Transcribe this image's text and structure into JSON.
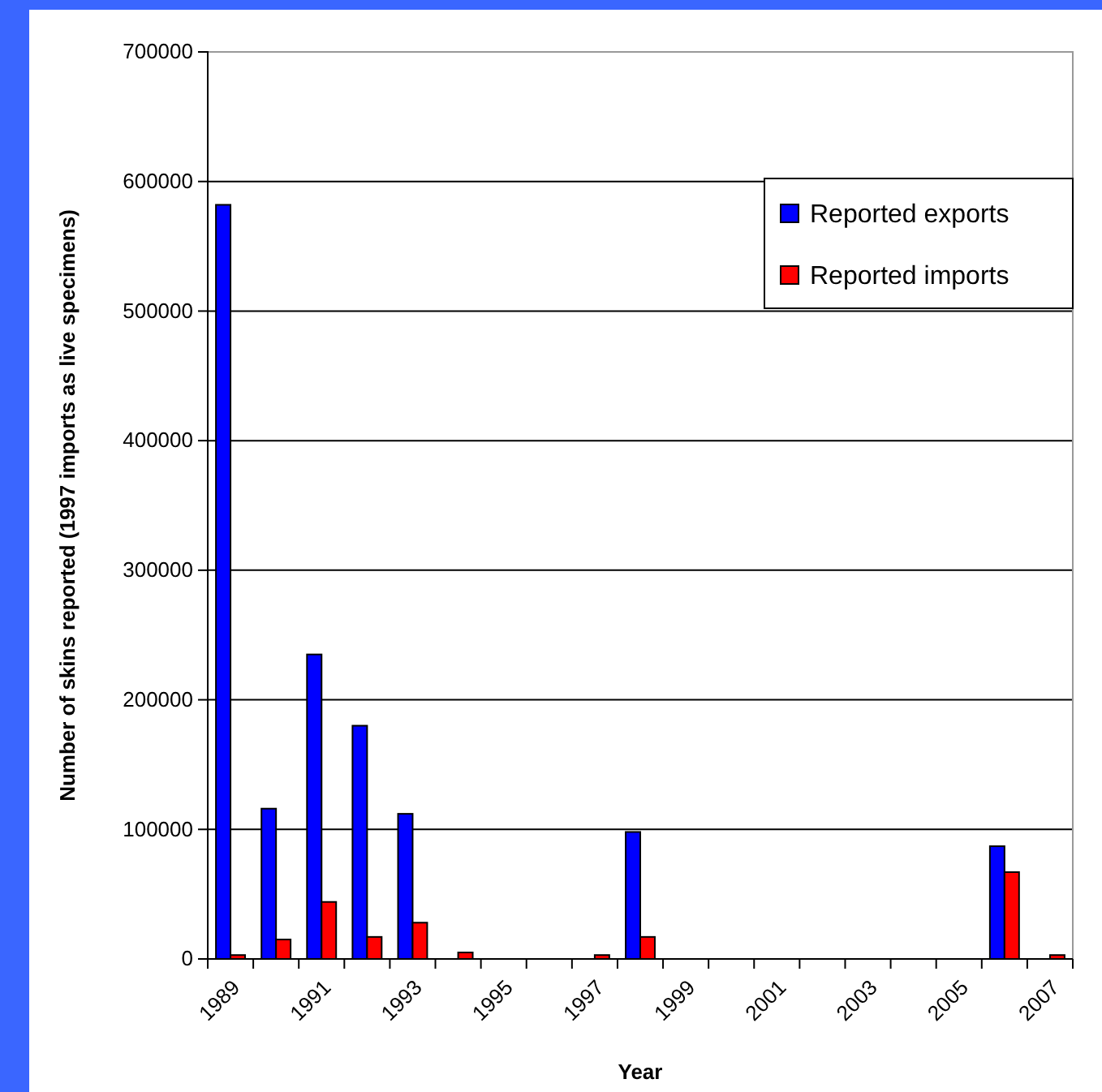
{
  "chart_data": {
    "type": "bar",
    "xlabel": "Year",
    "ylabel": "Number of skins reported (1997 imports as live specimens)",
    "categories": [
      "1989",
      null,
      "1991",
      null,
      "1993",
      null,
      "1995",
      null,
      "1997",
      null,
      "1999",
      null,
      "2001",
      null,
      "2003",
      null,
      "2005",
      null,
      "2007"
    ],
    "series": [
      {
        "name": "Reported exports",
        "color": "#0000ff",
        "values": [
          582000,
          116000,
          235000,
          180000,
          112000,
          null,
          null,
          null,
          null,
          98000,
          null,
          null,
          null,
          null,
          null,
          null,
          null,
          87000,
          null
        ]
      },
      {
        "name": "Reported imports",
        "color": "#ff0000",
        "values": [
          3000,
          15000,
          44000,
          17000,
          28000,
          5000,
          null,
          null,
          3000,
          17000,
          null,
          null,
          null,
          null,
          null,
          null,
          null,
          67000,
          3000
        ]
      }
    ],
    "ylim": [
      0,
      700000
    ],
    "yticks": [
      0,
      100000,
      200000,
      300000,
      400000,
      500000,
      600000,
      700000
    ],
    "grid": "y",
    "legend": "top right"
  }
}
